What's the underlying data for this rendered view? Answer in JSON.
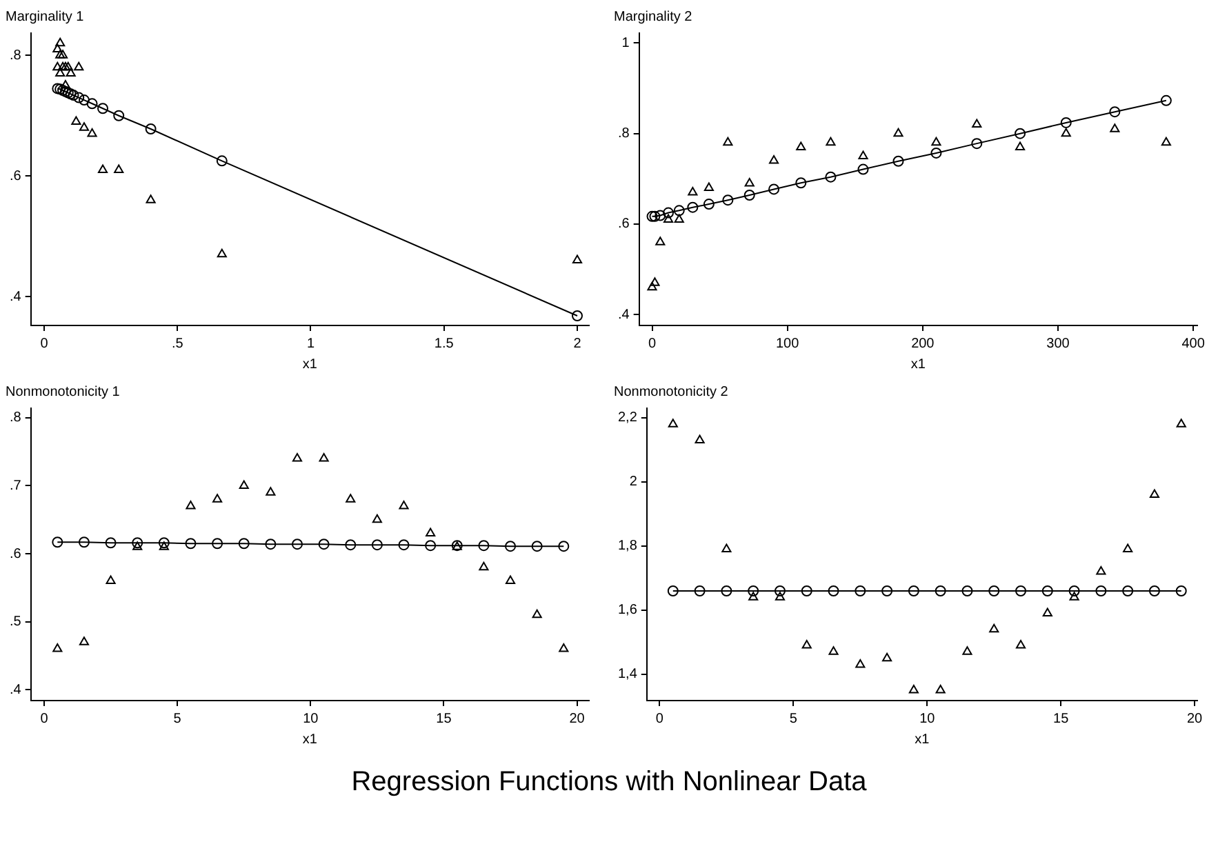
{
  "chart_data": [
    {
      "type": "scatter",
      "title": "Marginality 1",
      "xlabel": "x1",
      "xlim": [
        -0.05,
        2.044
      ],
      "ylim": [
        0.352,
        0.837
      ],
      "xticks": [
        0,
        {
          "value": 0.5,
          "label": ".5"
        },
        1,
        {
          "value": 1.5,
          "label": "1.5"
        },
        2
      ],
      "yticks": [
        {
          "value": 0.4,
          "label": ".4"
        },
        {
          "value": 0.6,
          "label": ".6"
        },
        {
          "value": 0.8,
          "label": ".8"
        }
      ],
      "grid": false,
      "series": [
        {
          "type": "scatter",
          "marker": "triangle",
          "color": "#000000",
          "x": [
            0.06,
            0.05,
            0.06,
            0.07,
            0.05,
            0.07,
            0.08,
            0.09,
            0.13,
            0.06,
            0.1,
            0.08,
            0.12,
            0.15,
            0.18,
            0.22,
            0.28,
            0.4,
            0.667,
            2
          ],
          "values": [
            0.82,
            0.81,
            0.8,
            0.8,
            0.78,
            0.78,
            0.78,
            0.78,
            0.78,
            0.77,
            0.77,
            0.75,
            0.69,
            0.68,
            0.67,
            0.61,
            0.61,
            0.56,
            0.47,
            0.46
          ]
        },
        {
          "type": "line",
          "marker": "circle",
          "color": "#000000",
          "x": [
            0.05,
            0.06,
            0.07,
            0.08,
            0.09,
            0.1,
            0.11,
            0.13,
            0.15,
            0.18,
            0.22,
            0.28,
            0.4,
            0.667,
            2
          ],
          "values": [
            0.745,
            0.744,
            0.742,
            0.74,
            0.738,
            0.736,
            0.734,
            0.73,
            0.726,
            0.72,
            0.712,
            0.7,
            0.678,
            0.625,
            0.368
          ]
        }
      ]
    },
    {
      "type": "scatter",
      "title": "Marginality 2",
      "xlabel": "x1",
      "xlim": [
        -9.6,
        403
      ],
      "ylim": [
        0.376,
        1.022
      ],
      "xticks": [
        0,
        100,
        200,
        300,
        400
      ],
      "yticks": [
        {
          "value": 0.4,
          "label": ".4"
        },
        {
          "value": 0.6,
          "label": ".6"
        },
        {
          "value": 0.8,
          "label": ".8"
        },
        1
      ],
      "grid": false,
      "series": [
        {
          "type": "scatter",
          "marker": "triangle",
          "color": "#000000",
          "x": [
            0,
            2,
            6,
            12,
            20,
            30,
            42,
            56,
            72,
            90,
            110,
            132,
            156,
            182,
            210,
            240,
            272,
            306,
            342,
            380
          ],
          "values": [
            0.46,
            0.47,
            0.56,
            0.61,
            0.61,
            0.67,
            0.68,
            0.78,
            0.69,
            0.74,
            0.77,
            0.78,
            0.75,
            0.8,
            0.78,
            0.82,
            0.77,
            0.8,
            0.81,
            0.78
          ]
        },
        {
          "type": "line",
          "marker": "circle",
          "color": "#000000",
          "x": [
            0,
            2,
            6,
            12,
            20,
            30,
            42,
            56,
            72,
            90,
            110,
            132,
            156,
            182,
            210,
            240,
            272,
            306,
            342,
            380
          ],
          "values": [
            0.617,
            0.617,
            0.619,
            0.625,
            0.63,
            0.637,
            0.644,
            0.653,
            0.664,
            0.677,
            0.691,
            0.704,
            0.721,
            0.739,
            0.757,
            0.778,
            0.8,
            0.824,
            0.848,
            0.873
          ]
        }
      ]
    },
    {
      "type": "scatter",
      "title": "Nonmonotonicity 1",
      "xlabel": "x1",
      "xlim": [
        -0.5,
        20.45
      ],
      "ylim": [
        0.384,
        0.814
      ],
      "xticks": [
        0,
        5,
        10,
        15,
        20
      ],
      "yticks": [
        {
          "value": 0.4,
          "label": ".4"
        },
        {
          "value": 0.5,
          "label": ".5"
        },
        {
          "value": 0.6,
          "label": ".6"
        },
        {
          "value": 0.7,
          "label": ".7"
        },
        {
          "value": 0.8,
          "label": ".8"
        }
      ],
      "grid": false,
      "series": [
        {
          "type": "scatter",
          "marker": "triangle",
          "color": "#000000",
          "x": [
            0.5,
            1.5,
            2.5,
            3.5,
            4.5,
            5.5,
            6.5,
            7.5,
            8.5,
            9.5,
            10.5,
            11.5,
            12.5,
            13.5,
            14.5,
            15.5,
            16.5,
            17.5,
            18.5,
            19.5
          ],
          "values": [
            0.46,
            0.47,
            0.56,
            0.61,
            0.61,
            0.67,
            0.68,
            0.7,
            0.69,
            0.74,
            0.74,
            0.68,
            0.65,
            0.67,
            0.63,
            0.61,
            0.58,
            0.56,
            0.51,
            0.46
          ]
        },
        {
          "type": "line",
          "marker": "circle",
          "color": "#000000",
          "x": [
            0.5,
            1.5,
            2.5,
            3.5,
            4.5,
            5.5,
            6.5,
            7.5,
            8.5,
            9.5,
            10.5,
            11.5,
            12.5,
            13.5,
            14.5,
            15.5,
            16.5,
            17.5,
            18.5,
            19.5
          ],
          "values": [
            0.617,
            0.617,
            0.616,
            0.616,
            0.616,
            0.615,
            0.615,
            0.615,
            0.614,
            0.614,
            0.614,
            0.613,
            0.613,
            0.613,
            0.612,
            0.612,
            0.612,
            0.611,
            0.611,
            0.611
          ]
        }
      ]
    },
    {
      "type": "scatter",
      "title": "Nonmonotonicity 2",
      "xlabel": "x1",
      "xlim": [
        -0.48,
        20.1
      ],
      "ylim": [
        1.318,
        2.23
      ],
      "xticks": [
        0,
        5,
        10,
        15,
        20
      ],
      "yticks": [
        {
          "value": 1.4,
          "label": "1,4"
        },
        {
          "value": 1.6,
          "label": "1,6"
        },
        {
          "value": 1.8,
          "label": "1,8"
        },
        2,
        {
          "value": 2.2,
          "label": "2,2"
        }
      ],
      "grid": false,
      "series": [
        {
          "type": "scatter",
          "marker": "triangle",
          "color": "#000000",
          "x": [
            0.5,
            1.5,
            2.5,
            3.5,
            4.5,
            5.5,
            6.5,
            7.5,
            8.5,
            9.5,
            10.5,
            11.5,
            12.5,
            13.5,
            14.5,
            15.5,
            16.5,
            17.5,
            18.5,
            19.5
          ],
          "values": [
            2.18,
            2.13,
            1.79,
            1.64,
            1.64,
            1.49,
            1.47,
            1.43,
            1.45,
            1.35,
            1.35,
            1.47,
            1.54,
            1.49,
            1.59,
            1.64,
            1.72,
            1.79,
            1.96,
            2.18
          ]
        },
        {
          "type": "line",
          "marker": "circle",
          "color": "#000000",
          "x": [
            0.5,
            1.5,
            2.5,
            3.5,
            4.5,
            5.5,
            6.5,
            7.5,
            8.5,
            9.5,
            10.5,
            11.5,
            12.5,
            13.5,
            14.5,
            15.5,
            16.5,
            17.5,
            18.5,
            19.5
          ],
          "values": [
            1.66,
            1.66,
            1.66,
            1.66,
            1.66,
            1.66,
            1.66,
            1.66,
            1.66,
            1.66,
            1.66,
            1.66,
            1.66,
            1.66,
            1.66,
            1.66,
            1.66,
            1.66,
            1.66,
            1.66
          ]
        }
      ]
    },
    {
      "type": "other",
      "title": "Regression Functions with Nonlinear Data"
    }
  ]
}
